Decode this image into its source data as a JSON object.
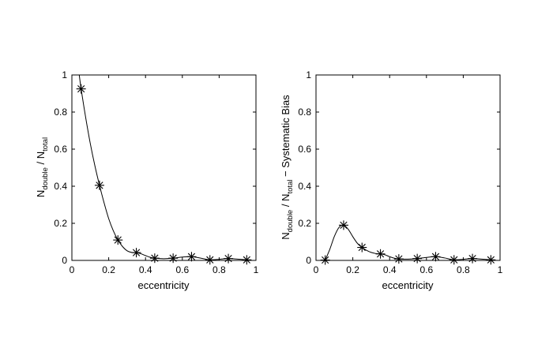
{
  "chart_data": [
    {
      "type": "line",
      "xlabel": "eccentricity",
      "ylabel": {
        "main_1": "N",
        "sub_1": "double",
        "mid": " / N",
        "sub_2": "total",
        "tail": ""
      },
      "xlim": [
        0,
        1
      ],
      "ylim": [
        0,
        1
      ],
      "xticks": [
        "0",
        "0.2",
        "0.4",
        "0.6",
        "0.8",
        "1"
      ],
      "yticks": [
        "0",
        "0.2",
        "0.4",
        "0.6",
        "0.8",
        "1"
      ],
      "grid": false,
      "marker": "asterisk",
      "x": [
        0.05,
        0.15,
        0.25,
        0.35,
        0.45,
        0.55,
        0.65,
        0.75,
        0.85,
        0.95
      ],
      "y": [
        0.925,
        0.405,
        0.11,
        0.042,
        0.012,
        0.012,
        0.02,
        0.003,
        0.01,
        0.003
      ],
      "curve": {
        "x": [
          0.04,
          0.05,
          0.075,
          0.1,
          0.125,
          0.15,
          0.175,
          0.2,
          0.225,
          0.25,
          0.275,
          0.3,
          0.325,
          0.35,
          0.375,
          0.4,
          0.425,
          0.45,
          0.5,
          0.55,
          0.6,
          0.65,
          0.7,
          0.75,
          0.8,
          0.85,
          0.9,
          0.95
        ],
        "y": [
          1.0,
          0.925,
          0.77,
          0.63,
          0.51,
          0.405,
          0.31,
          0.225,
          0.16,
          0.11,
          0.075,
          0.052,
          0.043,
          0.042,
          0.036,
          0.026,
          0.017,
          0.012,
          0.009,
          0.012,
          0.018,
          0.02,
          0.012,
          0.003,
          0.006,
          0.01,
          0.007,
          0.003
        ]
      }
    },
    {
      "type": "line",
      "xlabel": "eccentricity",
      "ylabel": {
        "main_1": "N",
        "sub_1": "double",
        "mid": " / N",
        "sub_2": "total",
        "tail": " − Systematic Bias"
      },
      "xlim": [
        0,
        1
      ],
      "ylim": [
        0,
        1
      ],
      "xticks": [
        "0",
        "0.2",
        "0.4",
        "0.6",
        "0.8",
        "1"
      ],
      "yticks": [
        "0",
        "0.2",
        "0.4",
        "0.6",
        "0.8",
        "1"
      ],
      "grid": false,
      "marker": "asterisk",
      "x": [
        0.05,
        0.15,
        0.25,
        0.35,
        0.45,
        0.55,
        0.65,
        0.75,
        0.85,
        0.95
      ],
      "y": [
        0.002,
        0.19,
        0.07,
        0.035,
        0.008,
        0.01,
        0.02,
        0.003,
        0.01,
        0.003
      ],
      "curve": {
        "x": [
          0.05,
          0.075,
          0.1,
          0.125,
          0.15,
          0.175,
          0.2,
          0.225,
          0.25,
          0.275,
          0.3,
          0.325,
          0.35,
          0.375,
          0.4,
          0.425,
          0.45,
          0.5,
          0.55,
          0.6,
          0.65,
          0.7,
          0.75,
          0.8,
          0.85,
          0.9,
          0.95
        ],
        "y": [
          0.002,
          0.06,
          0.13,
          0.178,
          0.19,
          0.168,
          0.128,
          0.092,
          0.07,
          0.054,
          0.043,
          0.037,
          0.035,
          0.03,
          0.02,
          0.012,
          0.008,
          0.007,
          0.01,
          0.016,
          0.02,
          0.013,
          0.003,
          0.006,
          0.01,
          0.007,
          0.003
        ]
      }
    }
  ]
}
